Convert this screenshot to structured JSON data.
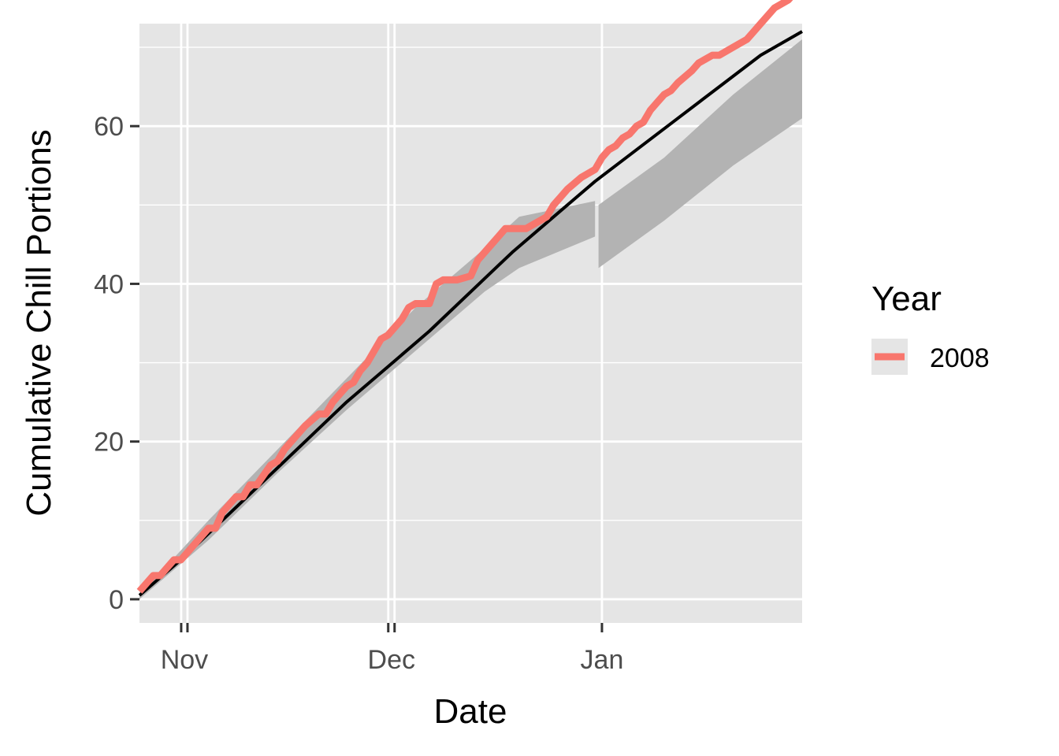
{
  "chart_data": {
    "type": "line",
    "xlabel": "Date",
    "ylabel": "Cumulative Chill Portions",
    "x_ticks": [
      {
        "label": "Nov",
        "value": 6.5
      },
      {
        "label": "Dec",
        "value": 36.5
      },
      {
        "label": "Jan",
        "value": 67
      }
    ],
    "y_ticks": [
      0,
      20,
      40,
      60
    ],
    "xlim": [
      0,
      96
    ],
    "ylim": [
      -3,
      73
    ],
    "grid": true,
    "legend": {
      "title": "Year",
      "position": "right",
      "entries": [
        {
          "label": "2008",
          "color": "#F8766D"
        }
      ]
    },
    "colors": {
      "panel": "#E5E5E5",
      "grid": "#FFFFFF",
      "ribbon": "#B3B3B3",
      "median": "#000000",
      "year_line": "#F8766D",
      "axis_text": "#4D4D4D"
    },
    "series": [
      {
        "name": "2008",
        "role": "observed",
        "x": [
          0,
          2,
          3,
          4,
          5,
          6,
          7,
          8,
          9,
          10,
          11,
          12,
          14,
          15,
          16,
          17,
          19,
          20,
          21,
          22,
          23,
          24,
          26,
          27,
          28,
          30,
          31,
          32,
          33,
          34,
          35,
          36,
          38,
          39,
          40,
          41,
          42,
          43,
          44,
          46,
          48,
          49,
          51,
          52,
          53,
          54,
          56,
          57,
          58,
          59,
          60,
          61,
          62,
          64,
          66,
          67,
          68,
          69,
          70,
          71,
          72,
          73,
          74,
          75,
          76,
          77,
          78,
          80,
          81,
          82,
          83,
          84,
          86,
          88,
          89,
          90,
          91,
          92,
          94,
          95,
          96
        ],
        "y": [
          1,
          3,
          3,
          4,
          5,
          5,
          6,
          7,
          8,
          9,
          9,
          11,
          13,
          13,
          14.5,
          14.5,
          17,
          17.5,
          19,
          20,
          21,
          22,
          23.5,
          23.5,
          25,
          27,
          27.5,
          29,
          30,
          31.5,
          33,
          33.5,
          35.5,
          37,
          37.5,
          37.5,
          37.5,
          40,
          40.5,
          40.5,
          41,
          43,
          45,
          46,
          47,
          47,
          47,
          47.5,
          48,
          48.5,
          50,
          51,
          52,
          53.5,
          54.5,
          56,
          57,
          57.5,
          58.5,
          59,
          60,
          60.5,
          62,
          63,
          64,
          64.5,
          65.5,
          67,
          68,
          68.5,
          69,
          69,
          70,
          71,
          72,
          73,
          74,
          75,
          76,
          77,
          78
        ]
      },
      {
        "name": "",
        "role": "median",
        "x": [
          0,
          6,
          12,
          18,
          24,
          30,
          36,
          42,
          48,
          54,
          60,
          66,
          72,
          78,
          84,
          90,
          96
        ],
        "y": [
          0.5,
          5,
          10,
          15,
          20,
          25,
          29.5,
          34,
          39,
          44,
          48.5,
          53,
          57,
          61,
          65,
          69,
          72
        ]
      },
      {
        "name": "",
        "role": "range",
        "x": [
          0,
          10,
          20,
          30,
          40,
          50,
          55,
          66,
          66.5,
          76,
          86,
          96
        ],
        "lower": [
          0,
          7.5,
          16,
          24,
          31.5,
          39,
          42,
          46,
          42,
          48,
          55,
          61
        ],
        "upper": [
          0.5,
          10,
          19,
          28,
          37,
          44.5,
          48.5,
          50.5,
          50,
          56,
          64,
          71
        ]
      }
    ]
  }
}
